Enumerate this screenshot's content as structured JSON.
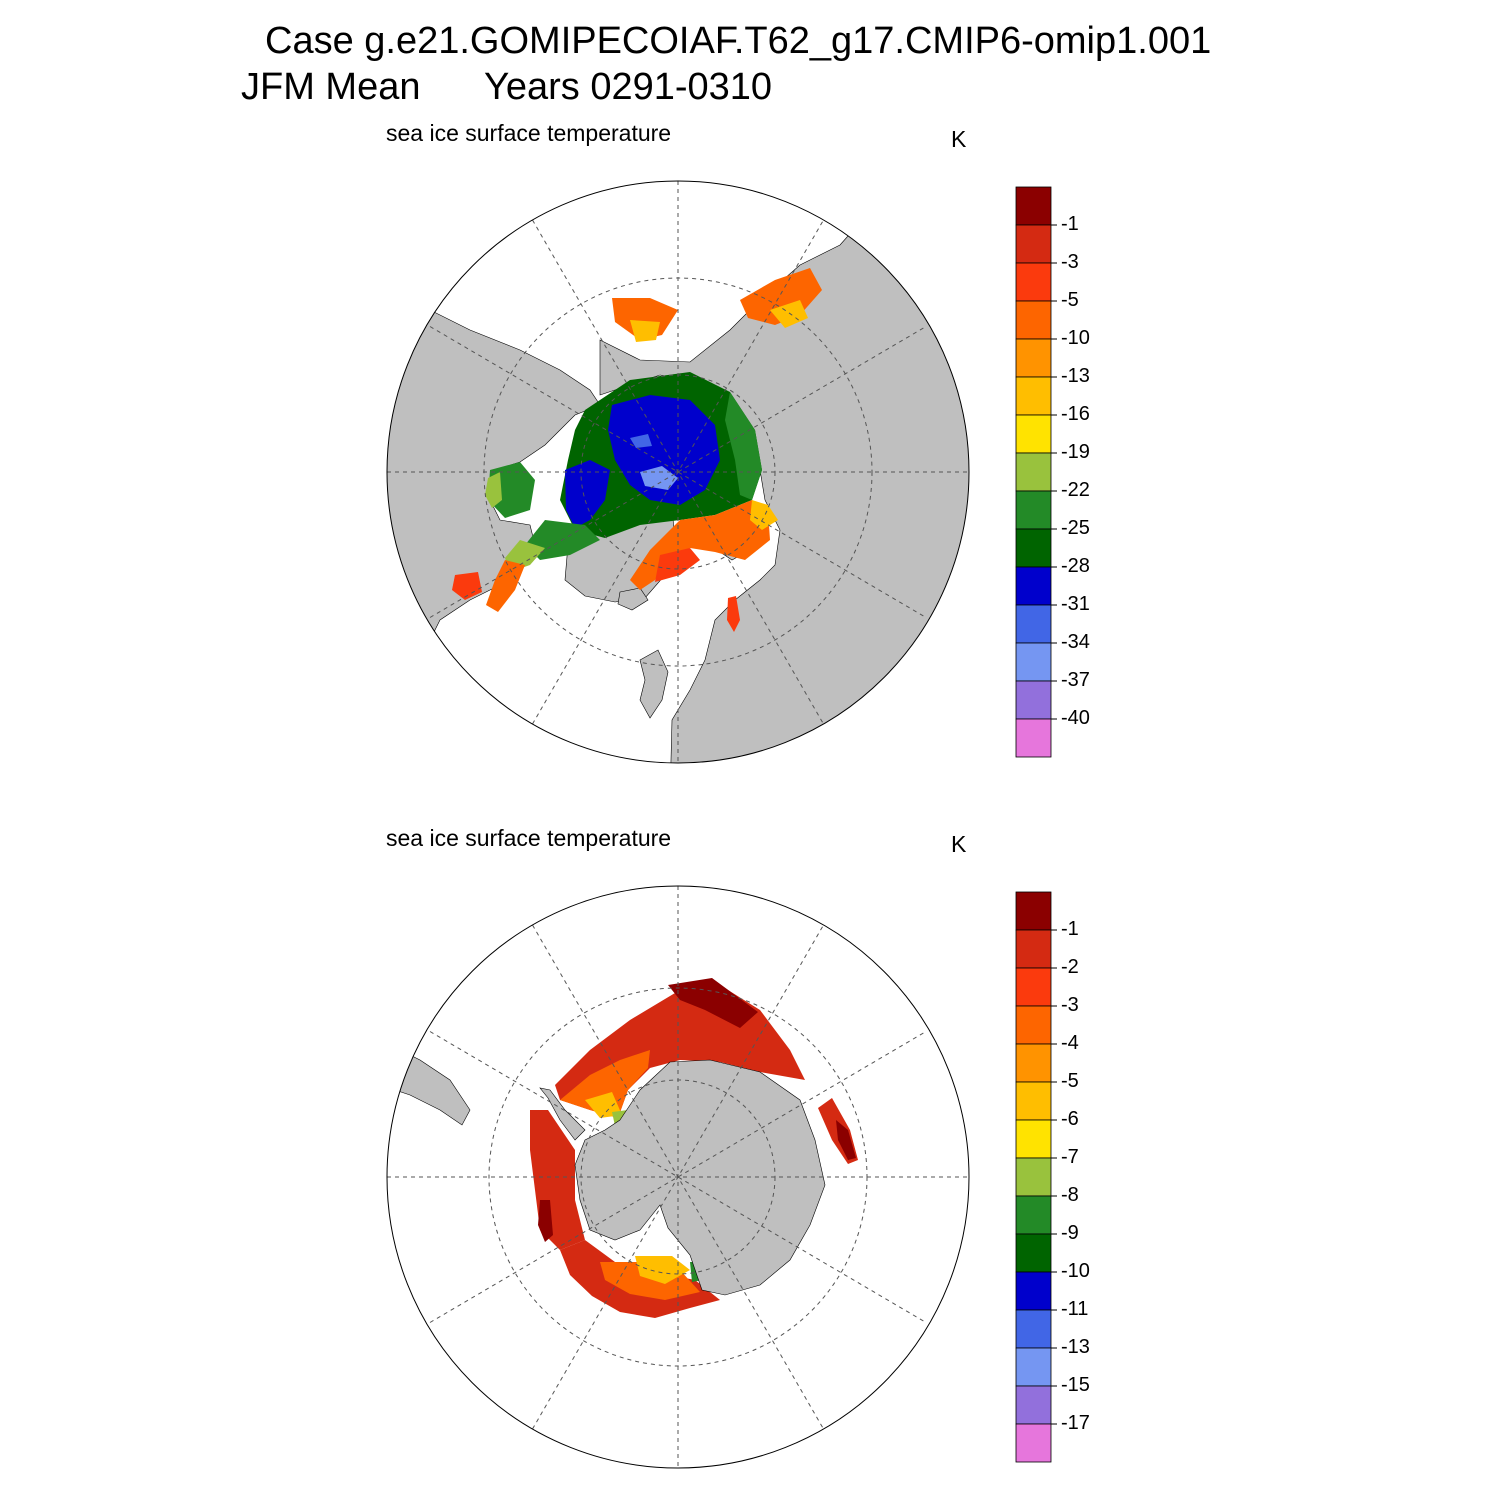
{
  "title": {
    "line1": "Case g.e21.GOMIPECOIAF.T62_g17.CMIP6-omip1.001",
    "season": "JFM Mean",
    "years": "Years 0291-0310"
  },
  "panels": [
    {
      "id": "north",
      "subtitle": "sea ice surface temperature",
      "unit": "K",
      "colorbar": {
        "colors": [
          "#8b0000",
          "#d42a12",
          "#fb3a0d",
          "#fd6500",
          "#ff9300",
          "#ffbe00",
          "#ffe300",
          "#99c23d",
          "#238a27",
          "#006400",
          "#0000cc",
          "#4166e6",
          "#7596f2",
          "#9270dc",
          "#e676dc"
        ],
        "labels": [
          "-1",
          "-3",
          "-5",
          "-10",
          "-13",
          "-16",
          "-19",
          "-22",
          "-25",
          "-28",
          "-31",
          "-34",
          "-37",
          "-40"
        ]
      }
    },
    {
      "id": "south",
      "subtitle": "sea ice surface temperature",
      "unit": "K",
      "colorbar": {
        "colors": [
          "#8b0000",
          "#d42a12",
          "#fb3a0d",
          "#fd6500",
          "#ff9300",
          "#ffbe00",
          "#ffe300",
          "#99c23d",
          "#238a27",
          "#006400",
          "#0000cc",
          "#4166e6",
          "#7596f2",
          "#9270dc",
          "#e676dc"
        ],
        "labels": [
          "-1",
          "-2",
          "-3",
          "-4",
          "-5",
          "-6",
          "-7",
          "-8",
          "-9",
          "-10",
          "-11",
          "-13",
          "-15",
          "-17"
        ]
      }
    }
  ],
  "colors": {
    "land": "#bfbfbf",
    "ocean": "#ffffff",
    "grid": "#555555"
  }
}
